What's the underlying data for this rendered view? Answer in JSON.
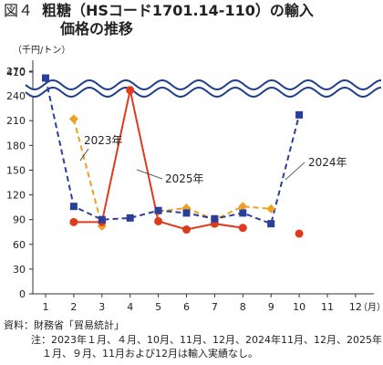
{
  "figure": {
    "number": "図４",
    "title_line1": "粗糖（HSコード1701.14-110）の輸入",
    "title_line2": "価格の推移"
  },
  "chart_data": {
    "type": "line",
    "unit_label": "（千円/トン）",
    "x_unit_label": "（月）",
    "categories": [
      "1",
      "2",
      "3",
      "4",
      "5",
      "6",
      "7",
      "8",
      "9",
      "10",
      "11",
      "12"
    ],
    "y_ticks": [
      0,
      30,
      60,
      90,
      120,
      150,
      180,
      210,
      240,
      270
    ],
    "y_break_tick": 410,
    "axis_break": "between 270 and 410",
    "ylim": [
      0,
      410
    ],
    "grid": false,
    "series": [
      {
        "name": "2023年",
        "color": "#f0a020",
        "style": "dashed",
        "marker": "diamond",
        "values": [
          null,
          212,
          82,
          null,
          100,
          104,
          90,
          106,
          103,
          null,
          null,
          null
        ]
      },
      {
        "name": "2024年",
        "color": "#2a3f9a",
        "style": "dashed",
        "marker": "square",
        "values": [
          390,
          106,
          90,
          92,
          101,
          98,
          91,
          98,
          85,
          217,
          null,
          null
        ]
      },
      {
        "name": "2025年",
        "color": "#e03a1e",
        "style": "solid",
        "marker": "circle",
        "values": [
          null,
          87,
          87,
          247,
          88,
          78,
          85,
          80,
          null,
          73,
          null,
          null
        ]
      }
    ]
  },
  "footnotes": {
    "source": "資料：財務省「貿易統計」",
    "note_line1": "注：2023年１月、４月、10月、11月、12月、2024年11月、12月、2025年",
    "note_line2": "１月、９月、11月および12月は輸入実績なし。"
  }
}
